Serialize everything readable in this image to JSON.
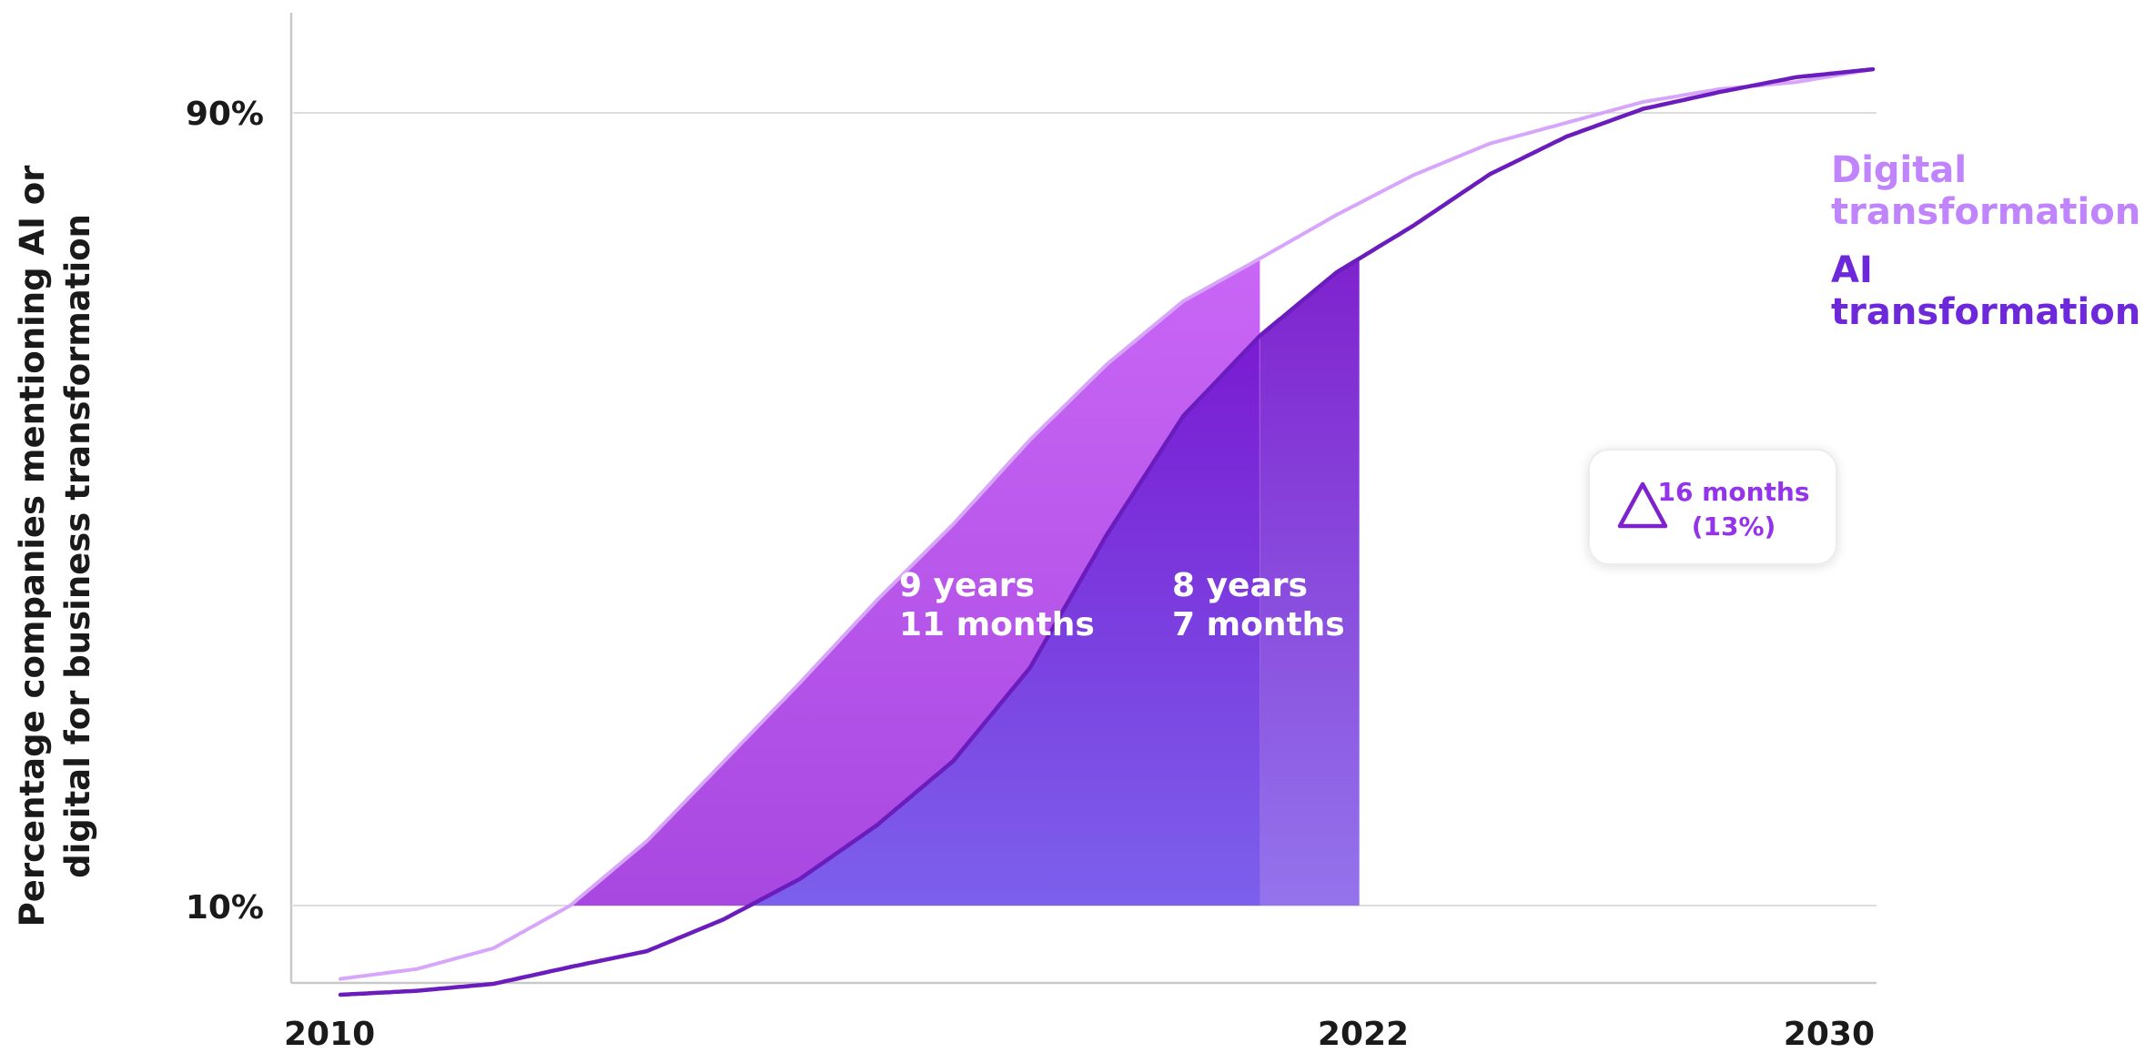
{
  "chart_data": {
    "type": "area",
    "ylabel_lines": [
      "Percentage companies mentioning AI or",
      "digital for business transformation"
    ],
    "x_ticks": [
      "2010",
      "2022",
      "2030"
    ],
    "y_ticks": [
      "10%",
      "90%"
    ],
    "series": [
      {
        "name": "Digital transformation",
        "name_lines": [
          "Digital",
          "transformation"
        ],
        "color": "#c084fc",
        "x": [
          2010,
          2011,
          2012,
          2013,
          2014,
          2015,
          2016,
          2017,
          2018,
          2019,
          2020,
          2021,
          2022,
          2023,
          2024,
          2025,
          2026,
          2027,
          2028,
          2029,
          2030
        ],
        "y": [
          2.6,
          3.6,
          5.7,
          10.0,
          16.5,
          24.5,
          32.5,
          40.8,
          48.5,
          57.0,
          64.6,
          71.0,
          75.3,
          79.7,
          83.7,
          86.9,
          89.0,
          91.1,
          92.4,
          93.1,
          94.4
        ]
      },
      {
        "name": "AI transformation",
        "name_lines": [
          "AI",
          "transformation"
        ],
        "color": "#6d28d9",
        "x": [
          2010,
          2011,
          2012,
          2013,
          2014,
          2015,
          2016,
          2017,
          2018,
          2019,
          2020,
          2021,
          2022,
          2023,
          2024,
          2025,
          2026,
          2027,
          2028,
          2029,
          2030
        ],
        "y": [
          1.0,
          1.4,
          2.1,
          3.8,
          5.4,
          8.6,
          12.7,
          18.1,
          24.6,
          34.0,
          47.4,
          59.4,
          67.5,
          73.9,
          78.6,
          83.8,
          87.6,
          90.4,
          92.1,
          93.6,
          94.4
        ]
      }
    ],
    "annotations": {
      "digital_span_lines": [
        "9 years",
        "11 months"
      ],
      "ai_span_lines": [
        "8 years",
        "7 months"
      ],
      "delta_lines": [
        "16 months",
        "(13%)"
      ]
    }
  }
}
